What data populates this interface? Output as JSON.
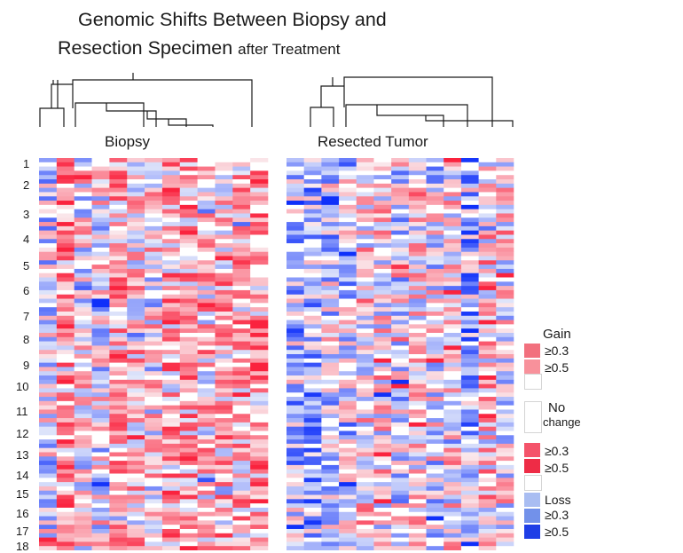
{
  "chart_data": {
    "type": "heatmap",
    "title_main": "Genomic Shifts Between Biopsy and",
    "title_line2": "Resection Specimen",
    "title_suffix": "after Treatment",
    "panels": [
      {
        "name": "Biopsy",
        "columns": 13
      },
      {
        "name": "Resected Tumor",
        "columns": 13
      }
    ],
    "row_labels": [
      "1",
      "2",
      "3",
      "4",
      "5",
      "6",
      "7",
      "8",
      "9",
      "10",
      "11",
      "12",
      "13",
      "14",
      "15",
      "16",
      "17",
      "18"
    ],
    "cell_rows": 92,
    "legend": [
      {
        "label": "Gain",
        "kind": "header"
      },
      {
        "label": "≥0.3",
        "color": "#f2707e"
      },
      {
        "label": "≥0.5",
        "color": "#f8919b"
      },
      {
        "label": "",
        "color": "#ffffff"
      },
      {
        "label": "No",
        "kind": "header"
      },
      {
        "label": "change",
        "color": "#ffffff"
      },
      {
        "label": "≥0.3",
        "color": "#f4536a"
      },
      {
        "label": "≥0.5",
        "color": "#ee2c46"
      },
      {
        "label": "",
        "color": "#ffffff"
      },
      {
        "label": "Loss",
        "color": "#a9bdf2"
      },
      {
        "label": "≥0.3",
        "color": "#7291ea"
      },
      {
        "label": "≥0.5",
        "color": "#1e3ee6"
      }
    ],
    "colors": {
      "gain_strong": "#f2233f",
      "loss_strong": "#1032e8",
      "neutral": "#ffffff"
    }
  }
}
